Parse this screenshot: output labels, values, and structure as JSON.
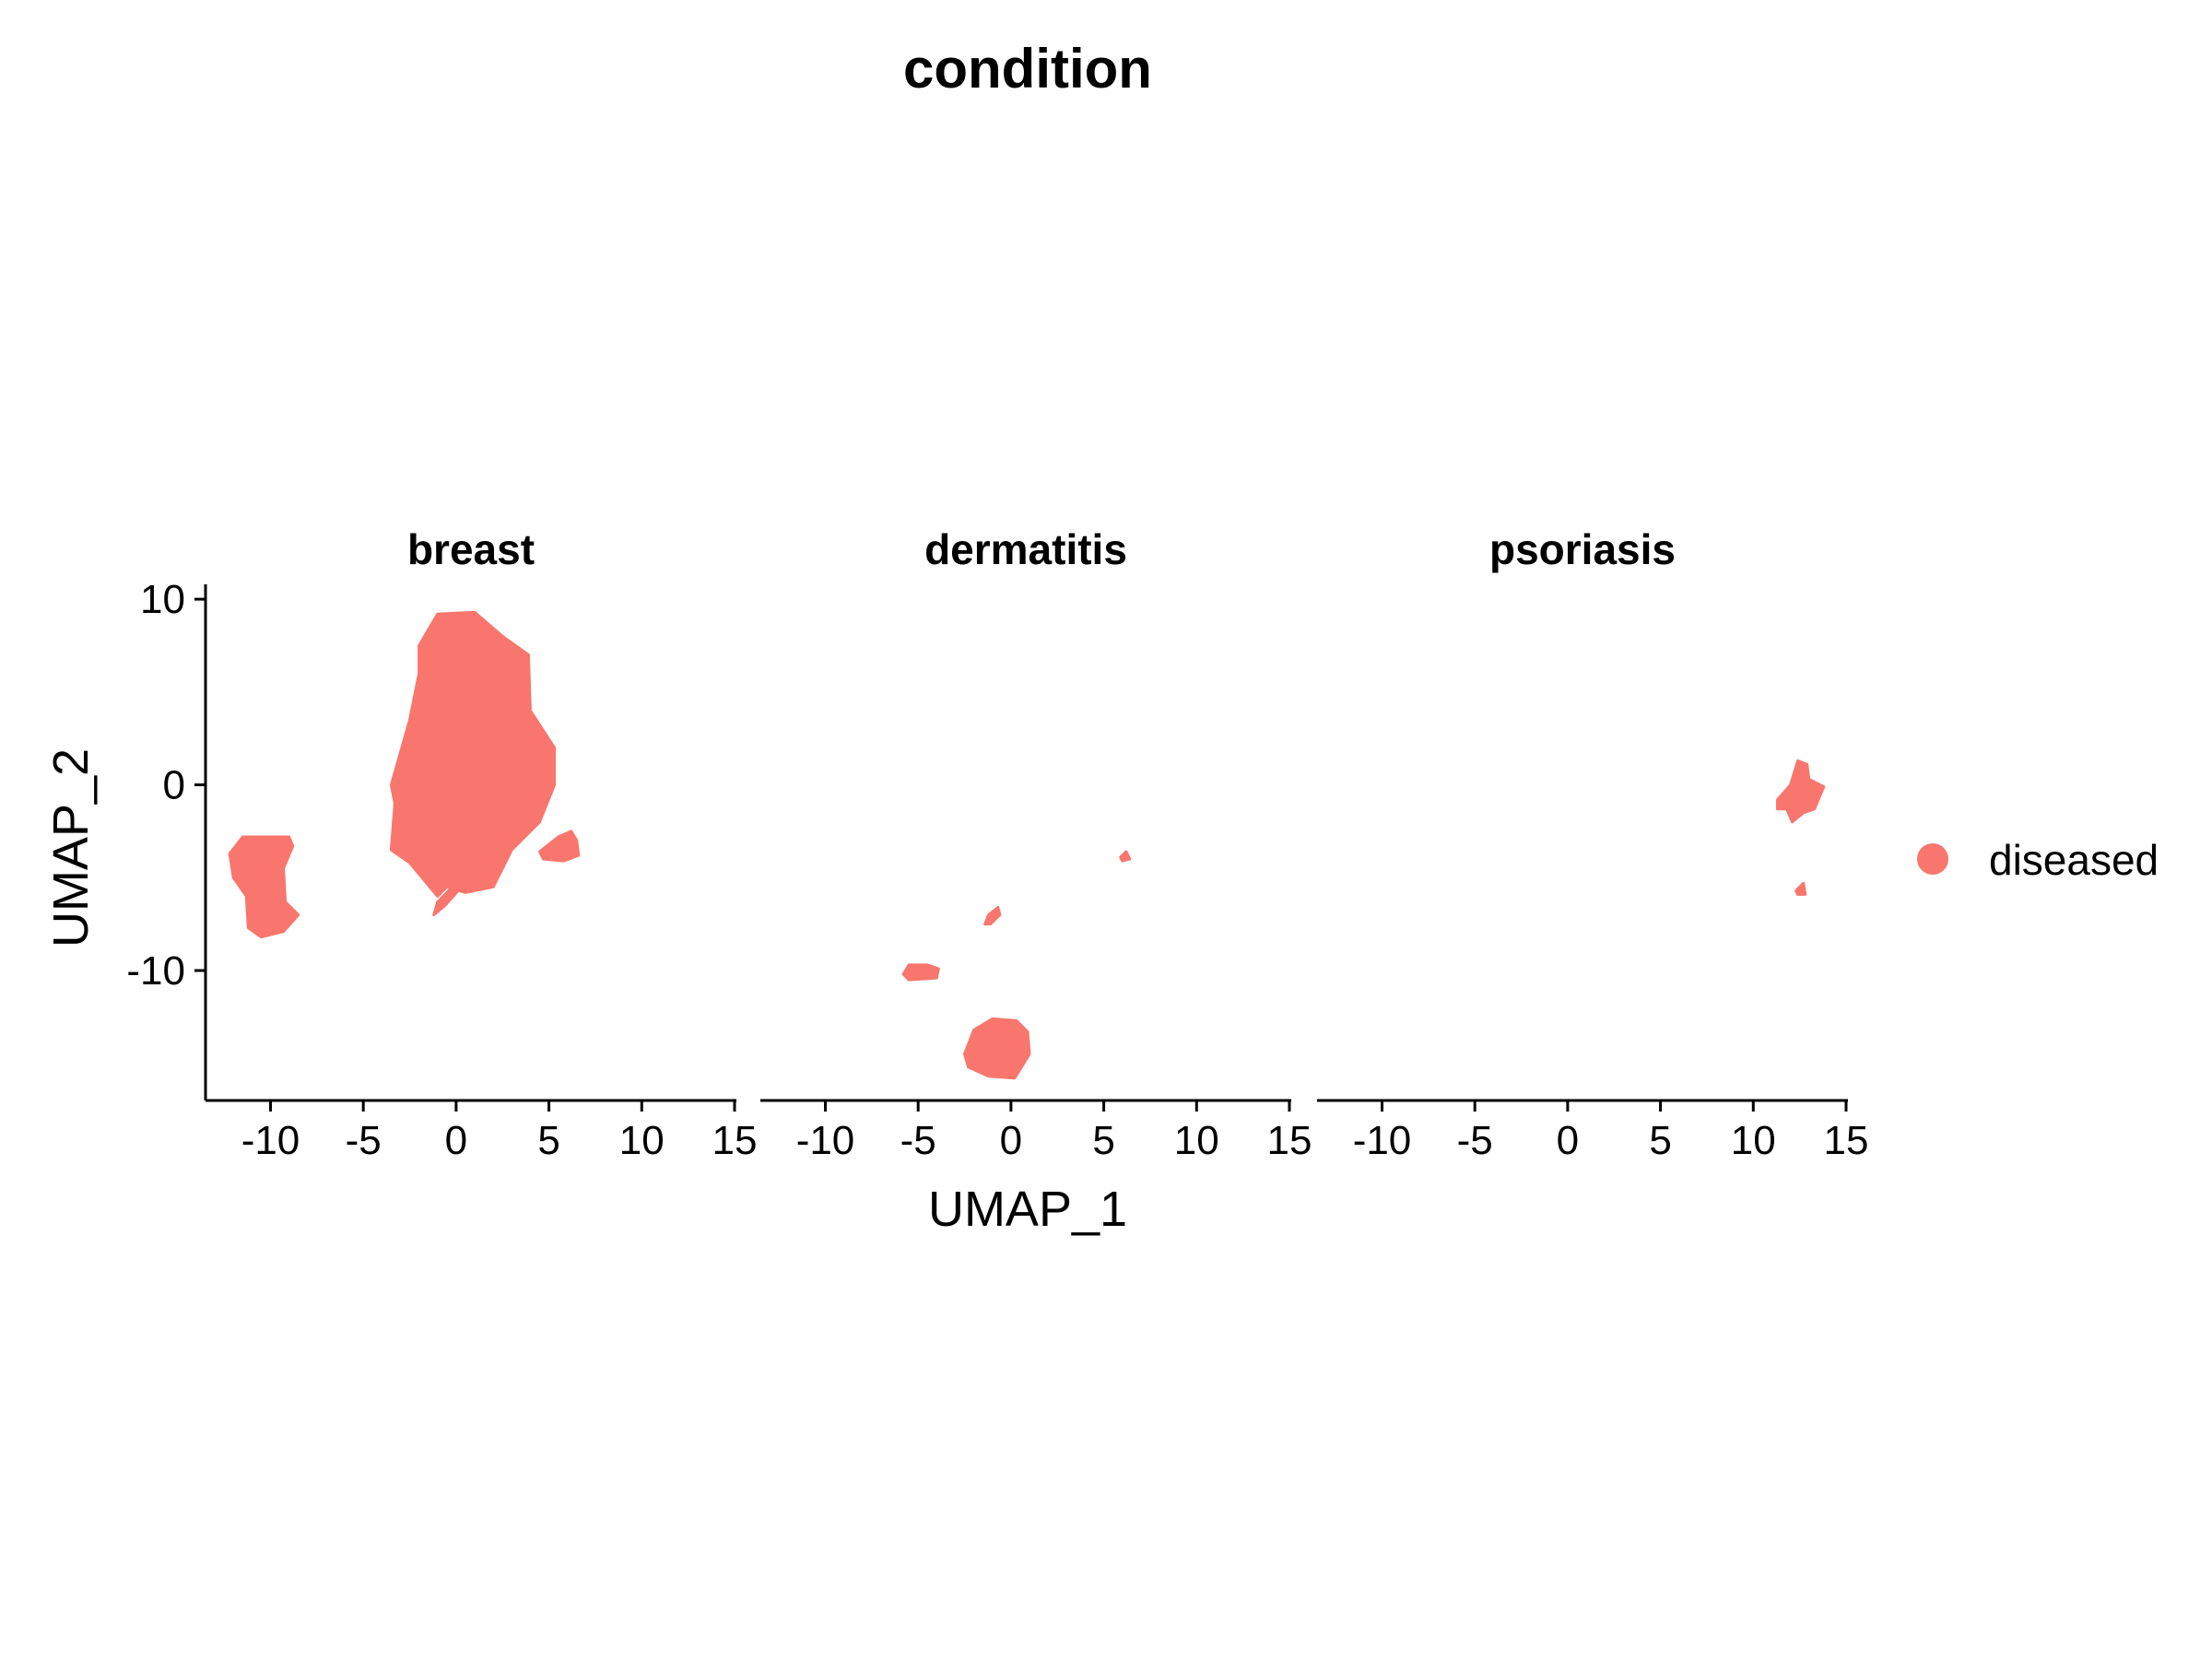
{
  "chart_data": {
    "type": "scatter",
    "title": "condition",
    "xlabel": "UMAP_1",
    "ylabel": "UMAP_2",
    "facet_by": "sample",
    "facets": [
      "breast",
      "dermatitis",
      "psoriasis"
    ],
    "xlim": [
      -13.5,
      15.1
    ],
    "ylim": [
      -17,
      10.8
    ],
    "xticks": [
      -10,
      -5,
      0,
      5,
      10,
      15
    ],
    "xtick_labels": [
      "-10",
      "-5",
      "0",
      "5",
      "10",
      "15"
    ],
    "yticks": [
      -10,
      0,
      10
    ],
    "ytick_labels": [
      "-10",
      "0",
      "10"
    ],
    "grid": false,
    "legend": {
      "position": "right",
      "entries": [
        {
          "label": "diseased",
          "color": "#F8766D"
        }
      ]
    },
    "point_color": "#F8766D",
    "series": [
      {
        "facet": "breast",
        "label": "diseased",
        "clusters": [
          {
            "shape": [
              [
                -2.0,
                7.5
              ],
              [
                -1.0,
                9.2
              ],
              [
                1.0,
                9.3
              ],
              [
                2.5,
                8.0
              ],
              [
                3.9,
                7.0
              ],
              [
                4.0,
                4.0
              ],
              [
                5.3,
                2.0
              ],
              [
                5.3,
                0.0
              ],
              [
                4.5,
                -2.0
              ],
              [
                3.0,
                -3.5
              ],
              [
                2.0,
                -5.5
              ],
              [
                0.5,
                -5.8
              ],
              [
                -0.5,
                -5.5
              ],
              [
                -1.0,
                -6.0
              ],
              [
                -2.5,
                -4.2
              ],
              [
                -3.5,
                -3.5
              ],
              [
                -3.3,
                -1.0
              ],
              [
                -3.5,
                0.0
              ],
              [
                -2.5,
                3.5
              ],
              [
                -2.0,
                6.0
              ]
            ]
          },
          {
            "shape": [
              [
                -0.2,
                -5.5
              ],
              [
                0.2,
                -5.6
              ],
              [
                -0.6,
                -6.5
              ],
              [
                -1.2,
                -7.0
              ],
              [
                -1.0,
                -6.3
              ]
            ]
          },
          {
            "shape": [
              [
                4.5,
                -3.6
              ],
              [
                5.5,
                -2.8
              ],
              [
                6.2,
                -2.5
              ],
              [
                6.5,
                -3.0
              ],
              [
                6.6,
                -3.8
              ],
              [
                5.8,
                -4.1
              ],
              [
                4.7,
                -4.0
              ]
            ]
          },
          {
            "shape": [
              [
                -12.2,
                -3.7
              ],
              [
                -11.5,
                -2.8
              ],
              [
                -9.0,
                -2.8
              ],
              [
                -8.8,
                -3.3
              ],
              [
                -9.3,
                -4.5
              ],
              [
                -9.2,
                -6.3
              ],
              [
                -8.5,
                -7.0
              ],
              [
                -9.3,
                -7.9
              ],
              [
                -10.5,
                -8.2
              ],
              [
                -11.2,
                -7.7
              ],
              [
                -11.3,
                -6.0
              ],
              [
                -12.0,
                -5.0
              ]
            ]
          }
        ]
      },
      {
        "facet": "dermatitis",
        "label": "diseased",
        "clusters": [
          {
            "shape": [
              [
                -2.5,
                -14.5
              ],
              [
                -2.0,
                -13.2
              ],
              [
                -1.0,
                -12.6
              ],
              [
                0.3,
                -12.7
              ],
              [
                0.9,
                -13.3
              ],
              [
                1.0,
                -14.5
              ],
              [
                0.2,
                -15.8
              ],
              [
                -1.2,
                -15.7
              ],
              [
                -2.3,
                -15.2
              ]
            ]
          },
          {
            "shape": [
              [
                -5.8,
                -10.2
              ],
              [
                -5.5,
                -9.7
              ],
              [
                -4.5,
                -9.7
              ],
              [
                -3.9,
                -9.9
              ],
              [
                -4.0,
                -10.4
              ],
              [
                -5.5,
                -10.5
              ]
            ]
          },
          {
            "shape": [
              [
                -1.4,
                -7.5
              ],
              [
                -1.2,
                -7.0
              ],
              [
                -0.7,
                -6.6
              ],
              [
                -0.6,
                -7.0
              ],
              [
                -1.1,
                -7.5
              ]
            ]
          },
          {
            "shape": [
              [
                5.9,
                -3.9
              ],
              [
                6.2,
                -3.6
              ],
              [
                6.4,
                -4.0
              ],
              [
                6.0,
                -4.1
              ]
            ]
          }
        ]
      },
      {
        "facet": "psoriasis",
        "label": "diseased",
        "clusters": [
          {
            "shape": [
              [
                11.3,
                -0.8
              ],
              [
                12.0,
                0.0
              ],
              [
                12.4,
                1.3
              ],
              [
                12.9,
                1.1
              ],
              [
                13.0,
                0.3
              ],
              [
                13.8,
                -0.1
              ],
              [
                13.3,
                -1.3
              ],
              [
                12.7,
                -1.5
              ],
              [
                12.1,
                -2.0
              ],
              [
                11.8,
                -1.3
              ],
              [
                11.3,
                -1.3
              ]
            ]
          },
          {
            "shape": [
              [
                12.3,
                -5.7
              ],
              [
                12.7,
                -5.3
              ],
              [
                12.8,
                -5.9
              ],
              [
                12.4,
                -5.9
              ]
            ]
          }
        ]
      }
    ]
  }
}
